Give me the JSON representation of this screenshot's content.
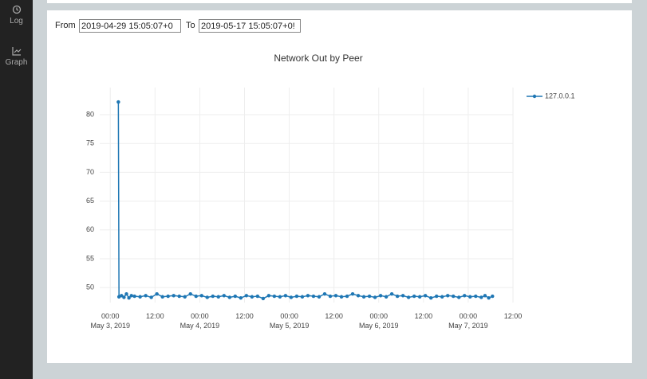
{
  "sidebar": {
    "items": [
      "Log",
      "Graph"
    ]
  },
  "filter": {
    "from_label": "From",
    "from_value": "2019-04-29 15:05:07+0",
    "to_label": "To",
    "to_value": "2019-05-17 15:05:07+0!"
  },
  "chart_data": {
    "type": "line",
    "title": "Network Out by Peer",
    "series": [
      {
        "name": "127.0.0.1",
        "color": "#1f77b4",
        "x": [
          "2019-05-03 02:10",
          "2019-05-03 02:20",
          "2019-05-03 03:00",
          "2019-05-03 03:40",
          "2019-05-03 04:20",
          "2019-05-03 05:00",
          "2019-05-03 05:40",
          "2019-05-03 06:30",
          "2019-05-03 08:00",
          "2019-05-03 09:30",
          "2019-05-03 11:00",
          "2019-05-03 12:30",
          "2019-05-03 14:00",
          "2019-05-03 15:30",
          "2019-05-03 17:00",
          "2019-05-03 18:30",
          "2019-05-03 20:00",
          "2019-05-03 21:30",
          "2019-05-03 23:00",
          "2019-05-04 00:30",
          "2019-05-04 02:00",
          "2019-05-04 03:30",
          "2019-05-04 05:00",
          "2019-05-04 06:30",
          "2019-05-04 08:00",
          "2019-05-04 09:30",
          "2019-05-04 11:00",
          "2019-05-04 12:30",
          "2019-05-04 14:00",
          "2019-05-04 15:30",
          "2019-05-04 17:00",
          "2019-05-04 18:30",
          "2019-05-04 20:00",
          "2019-05-04 21:30",
          "2019-05-04 23:00",
          "2019-05-05 00:30",
          "2019-05-05 02:00",
          "2019-05-05 03:30",
          "2019-05-05 05:00",
          "2019-05-05 06:30",
          "2019-05-05 08:00",
          "2019-05-05 09:30",
          "2019-05-05 11:00",
          "2019-05-05 12:30",
          "2019-05-05 14:00",
          "2019-05-05 15:30",
          "2019-05-05 17:00",
          "2019-05-05 18:30",
          "2019-05-05 20:00",
          "2019-05-05 21:30",
          "2019-05-05 23:00",
          "2019-05-06 00:30",
          "2019-05-06 02:00",
          "2019-05-06 03:30",
          "2019-05-06 05:00",
          "2019-05-06 06:30",
          "2019-05-06 08:00",
          "2019-05-06 09:30",
          "2019-05-06 11:00",
          "2019-05-06 12:30",
          "2019-05-06 14:00",
          "2019-05-06 15:30",
          "2019-05-06 17:00",
          "2019-05-06 18:30",
          "2019-05-06 20:00",
          "2019-05-06 21:30",
          "2019-05-06 23:00",
          "2019-05-07 00:30",
          "2019-05-07 02:00",
          "2019-05-07 03:30",
          "2019-05-07 04:30",
          "2019-05-07 05:30",
          "2019-05-07 06:30"
        ],
        "values": [
          82.2,
          48.4,
          48.6,
          48.3,
          48.9,
          48.2,
          48.6,
          48.5,
          48.4,
          48.6,
          48.3,
          48.9,
          48.4,
          48.5,
          48.6,
          48.5,
          48.4,
          48.9,
          48.5,
          48.6,
          48.3,
          48.5,
          48.4,
          48.6,
          48.3,
          48.5,
          48.2,
          48.6,
          48.4,
          48.5,
          48.1,
          48.6,
          48.5,
          48.4,
          48.6,
          48.3,
          48.5,
          48.4,
          48.6,
          48.5,
          48.4,
          48.9,
          48.5,
          48.6,
          48.4,
          48.5,
          48.9,
          48.6,
          48.4,
          48.5,
          48.3,
          48.6,
          48.4,
          48.9,
          48.5,
          48.6,
          48.3,
          48.5,
          48.4,
          48.6,
          48.2,
          48.5,
          48.4,
          48.6,
          48.5,
          48.3,
          48.6,
          48.4,
          48.5,
          48.3,
          48.6,
          48.2,
          48.5
        ]
      }
    ],
    "xlim": [
      "2019-05-02 21:10",
      "2019-05-07 12:00"
    ],
    "xticks": [
      {
        "value": "2019-05-03 00:00",
        "label": "00:00\nMay 3, 2019"
      },
      {
        "value": "2019-05-03 12:00",
        "label": "12:00"
      },
      {
        "value": "2019-05-04 00:00",
        "label": "00:00\nMay 4, 2019"
      },
      {
        "value": "2019-05-04 12:00",
        "label": "12:00"
      },
      {
        "value": "2019-05-05 00:00",
        "label": "00:00\nMay 5, 2019"
      },
      {
        "value": "2019-05-05 12:00",
        "label": "12:00"
      },
      {
        "value": "2019-05-06 00:00",
        "label": "00:00\nMay 6, 2019"
      },
      {
        "value": "2019-05-06 12:00",
        "label": "12:00"
      },
      {
        "value": "2019-05-07 00:00",
        "label": "00:00\nMay 7, 2019"
      },
      {
        "value": "2019-05-07 12:00",
        "label": "12:00"
      }
    ],
    "ylim": [
      47.4,
      84.7
    ],
    "yticks": [
      50,
      55,
      60,
      65,
      70,
      75,
      80
    ],
    "grid": true,
    "legend": "right"
  }
}
